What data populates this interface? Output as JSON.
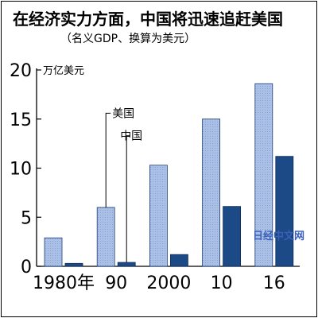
{
  "header": {
    "title": "在经济实力方面，中国将迅速追赶美国",
    "subtitle": "（名义GDP、换算为美元）"
  },
  "watermark": "日经中文网",
  "chart_data": {
    "type": "bar",
    "title": "在经济实力方面，中国将迅速追赶美国",
    "subtitle": "（名义GDP、换算为美元）",
    "unit_label": "万亿美元",
    "categories": [
      "1980年",
      "90",
      "2000",
      "10",
      "16"
    ],
    "series": [
      {
        "name": "美国",
        "values": [
          2.9,
          6.0,
          10.3,
          15.0,
          18.6
        ],
        "color": "#aac0e6"
      },
      {
        "name": "中国",
        "values": [
          0.3,
          0.4,
          1.2,
          6.1,
          11.2
        ],
        "color": "#1c4a86"
      }
    ],
    "ylim": [
      0,
      20
    ],
    "yticks": [
      0,
      5,
      10,
      15,
      20
    ],
    "grid": false,
    "legend": "inline-callouts"
  }
}
